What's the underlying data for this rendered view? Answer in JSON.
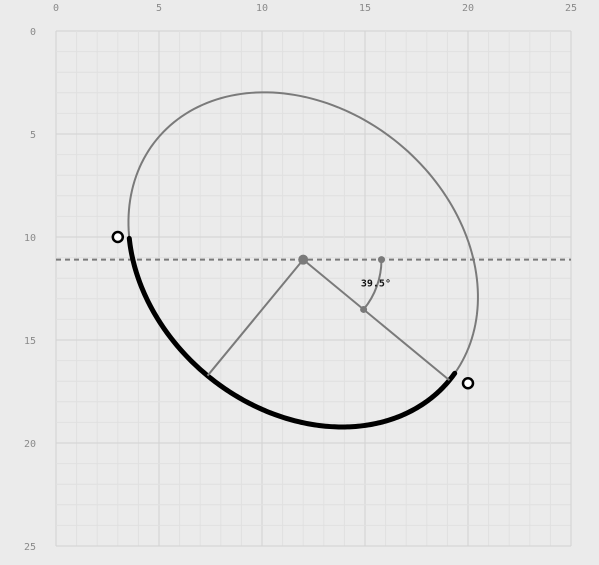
{
  "axes": {
    "x_ticks": [
      "0",
      "5",
      "10",
      "15",
      "20",
      "25"
    ],
    "y_ticks": [
      "0",
      "5",
      "10",
      "15",
      "20",
      "25"
    ],
    "range": [
      0,
      25
    ],
    "minor_step": 1,
    "major_step": 5,
    "grid": true
  },
  "ellipse": {
    "center": [
      12,
      11.1
    ],
    "rx": 9.2,
    "ry": 7.3,
    "rotation_deg": 39.5
  },
  "reference_line_y": 11.1,
  "arc": {
    "start_point": [
      3,
      10
    ],
    "end_point": [
      20,
      17.1
    ]
  },
  "angle": {
    "label": "39.5°",
    "value_deg": 39.5
  },
  "colors": {
    "background": "#ebebeb",
    "grid_minor": "#e0e0e0",
    "grid_major": "#d2d2d2",
    "ellipse": "#7a7a7a",
    "arc": "#000000",
    "construction": "#7a7a7a",
    "dashed": "#7a7a7a"
  }
}
